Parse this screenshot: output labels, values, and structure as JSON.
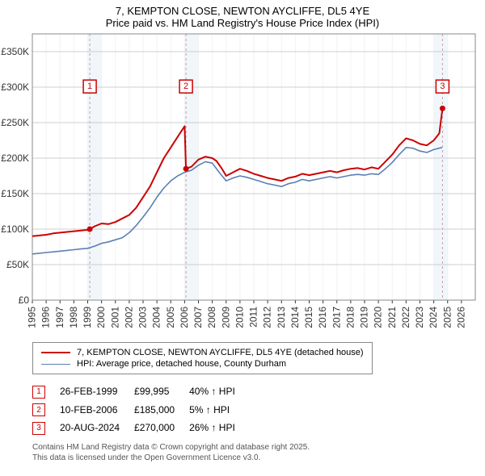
{
  "title_line1": "7, KEMPTON CLOSE, NEWTON AYCLIFFE, DL5 4YE",
  "title_line2": "Price paid vs. HM Land Registry's House Price Index (HPI)",
  "chart": {
    "type": "line",
    "background_color": "#ffffff",
    "plot_bg": "#ffffff",
    "grid_color": "#bfbfbf",
    "border_color": "#888888",
    "x_axis": {
      "min": 1995,
      "max": 2027,
      "ticks": [
        1995,
        1996,
        1997,
        1998,
        1999,
        2000,
        2001,
        2002,
        2003,
        2004,
        2005,
        2006,
        2007,
        2008,
        2009,
        2010,
        2011,
        2012,
        2013,
        2014,
        2015,
        2016,
        2017,
        2018,
        2019,
        2020,
        2021,
        2022,
        2023,
        2024,
        2025,
        2026
      ],
      "tick_rotation": -90,
      "label_fontsize": 12
    },
    "y_axis": {
      "min": 0,
      "max": 375000,
      "ticks": [
        0,
        50000,
        100000,
        150000,
        200000,
        250000,
        300000,
        350000
      ],
      "tick_labels": [
        "£0",
        "£50K",
        "£100K",
        "£150K",
        "£200K",
        "£250K",
        "£300K",
        "£350K"
      ],
      "label_fontsize": 12
    },
    "sale_band_color": "#e6eef7",
    "sale_dash_color": "#c59fa5",
    "series": [
      {
        "id": "property",
        "color": "#cc0000",
        "line_width": 2,
        "data": [
          [
            1995.0,
            90000
          ],
          [
            1995.5,
            91000
          ],
          [
            1996.0,
            92000
          ],
          [
            1996.5,
            94000
          ],
          [
            1997.0,
            95000
          ],
          [
            1997.5,
            96000
          ],
          [
            1998.0,
            97000
          ],
          [
            1998.5,
            98000
          ],
          [
            1999.0,
            99000
          ],
          [
            1999.15,
            99995
          ],
          [
            1999.5,
            104000
          ],
          [
            2000.0,
            108000
          ],
          [
            2000.5,
            107000
          ],
          [
            2001.0,
            110000
          ],
          [
            2001.5,
            115000
          ],
          [
            2002.0,
            120000
          ],
          [
            2002.5,
            130000
          ],
          [
            2003.0,
            145000
          ],
          [
            2003.5,
            160000
          ],
          [
            2004.0,
            180000
          ],
          [
            2004.5,
            200000
          ],
          [
            2005.0,
            215000
          ],
          [
            2005.5,
            230000
          ],
          [
            2006.0,
            245000
          ],
          [
            2006.1,
            185000
          ],
          [
            2006.5,
            188000
          ],
          [
            2007.0,
            198000
          ],
          [
            2007.5,
            202000
          ],
          [
            2008.0,
            200000
          ],
          [
            2008.3,
            196000
          ],
          [
            2008.7,
            185000
          ],
          [
            2009.0,
            175000
          ],
          [
            2009.5,
            180000
          ],
          [
            2010.0,
            185000
          ],
          [
            2010.5,
            182000
          ],
          [
            2011.0,
            178000
          ],
          [
            2011.5,
            175000
          ],
          [
            2012.0,
            172000
          ],
          [
            2012.5,
            170000
          ],
          [
            2013.0,
            168000
          ],
          [
            2013.5,
            172000
          ],
          [
            2014.0,
            174000
          ],
          [
            2014.5,
            178000
          ],
          [
            2015.0,
            176000
          ],
          [
            2015.5,
            178000
          ],
          [
            2016.0,
            180000
          ],
          [
            2016.5,
            182000
          ],
          [
            2017.0,
            180000
          ],
          [
            2017.5,
            183000
          ],
          [
            2018.0,
            185000
          ],
          [
            2018.5,
            186000
          ],
          [
            2019.0,
            184000
          ],
          [
            2019.5,
            187000
          ],
          [
            2020.0,
            185000
          ],
          [
            2020.5,
            195000
          ],
          [
            2021.0,
            205000
          ],
          [
            2021.5,
            218000
          ],
          [
            2022.0,
            228000
          ],
          [
            2022.5,
            225000
          ],
          [
            2023.0,
            220000
          ],
          [
            2023.5,
            218000
          ],
          [
            2024.0,
            225000
          ],
          [
            2024.4,
            235000
          ],
          [
            2024.63,
            270000
          ]
        ]
      },
      {
        "id": "hpi",
        "color": "#5b7fb5",
        "line_width": 1.6,
        "data": [
          [
            1995.0,
            65000
          ],
          [
            1995.5,
            66000
          ],
          [
            1996.0,
            67000
          ],
          [
            1996.5,
            68000
          ],
          [
            1997.0,
            69000
          ],
          [
            1997.5,
            70000
          ],
          [
            1998.0,
            71000
          ],
          [
            1998.5,
            72000
          ],
          [
            1999.0,
            73000
          ],
          [
            1999.5,
            76000
          ],
          [
            2000.0,
            80000
          ],
          [
            2000.5,
            82000
          ],
          [
            2001.0,
            85000
          ],
          [
            2001.5,
            88000
          ],
          [
            2002.0,
            95000
          ],
          [
            2002.5,
            105000
          ],
          [
            2003.0,
            117000
          ],
          [
            2003.5,
            130000
          ],
          [
            2004.0,
            145000
          ],
          [
            2004.5,
            158000
          ],
          [
            2005.0,
            168000
          ],
          [
            2005.5,
            175000
          ],
          [
            2006.0,
            180000
          ],
          [
            2006.5,
            183000
          ],
          [
            2007.0,
            190000
          ],
          [
            2007.5,
            195000
          ],
          [
            2008.0,
            193000
          ],
          [
            2008.5,
            180000
          ],
          [
            2009.0,
            168000
          ],
          [
            2009.5,
            172000
          ],
          [
            2010.0,
            175000
          ],
          [
            2010.5,
            173000
          ],
          [
            2011.0,
            170000
          ],
          [
            2011.5,
            167000
          ],
          [
            2012.0,
            164000
          ],
          [
            2012.5,
            162000
          ],
          [
            2013.0,
            160000
          ],
          [
            2013.5,
            164000
          ],
          [
            2014.0,
            166000
          ],
          [
            2014.5,
            170000
          ],
          [
            2015.0,
            168000
          ],
          [
            2015.5,
            170000
          ],
          [
            2016.0,
            172000
          ],
          [
            2016.5,
            174000
          ],
          [
            2017.0,
            172000
          ],
          [
            2017.5,
            174000
          ],
          [
            2018.0,
            176000
          ],
          [
            2018.5,
            177000
          ],
          [
            2019.0,
            176000
          ],
          [
            2019.5,
            178000
          ],
          [
            2020.0,
            177000
          ],
          [
            2020.5,
            185000
          ],
          [
            2021.0,
            194000
          ],
          [
            2021.5,
            205000
          ],
          [
            2022.0,
            215000
          ],
          [
            2022.5,
            214000
          ],
          [
            2023.0,
            210000
          ],
          [
            2023.5,
            208000
          ],
          [
            2024.0,
            212000
          ],
          [
            2024.6,
            215000
          ]
        ]
      }
    ],
    "markers": [
      {
        "id": 1,
        "x": 1999.15,
        "box_y": 310000
      },
      {
        "id": 2,
        "x": 2006.1,
        "box_y": 310000
      },
      {
        "id": 3,
        "x": 2024.63,
        "box_y": 310000
      }
    ],
    "marker_dot_color": "#cc0000",
    "marker_box_stroke": "#cc0000"
  },
  "legend": {
    "s1_label": "7, KEMPTON CLOSE, NEWTON AYCLIFFE, DL5 4YE (detached house)",
    "s2_label": "HPI: Average price, detached house, County Durham"
  },
  "sales_rows": [
    {
      "n": "1",
      "date": "26-FEB-1999",
      "price": "£99,995",
      "delta": "40% ↑ HPI"
    },
    {
      "n": "2",
      "date": "10-FEB-2006",
      "price": "£185,000",
      "delta": "5% ↑ HPI"
    },
    {
      "n": "3",
      "date": "20-AUG-2024",
      "price": "£270,000",
      "delta": "26% ↑ HPI"
    }
  ],
  "footer_l1": "Contains HM Land Registry data © Crown copyright and database right 2025.",
  "footer_l2": "This data is licensed under the Open Government Licence v3.0."
}
